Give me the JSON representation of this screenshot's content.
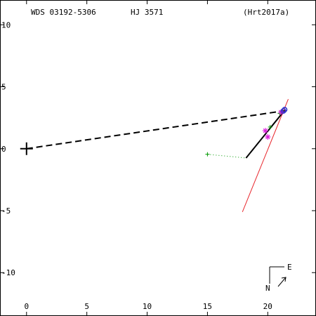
{
  "header": {
    "wds_id": "WDS 03192-5306",
    "discoverer": "HJ 3571",
    "reference": "(Hrt2017a)"
  },
  "compass": {
    "north_label": "N",
    "east_label": "E"
  },
  "colors": {
    "axes": "#000000",
    "orbit": "#000000",
    "line_of_nodes": "#e8262c",
    "measure_link": "#009900",
    "measure_point": "#009900",
    "speckle_point": "#dd22dd",
    "latest_point": "#3333cc"
  },
  "chart_data": {
    "type": "scatter",
    "title": "",
    "xlabel": "",
    "ylabel": "",
    "xlim": [
      -2.2,
      24
    ],
    "ylim": [
      -13.5,
      12
    ],
    "x_ticks": [
      0,
      5,
      10,
      15,
      20
    ],
    "x_tick_labels": [
      "0",
      "5",
      "10",
      "15",
      "20"
    ],
    "y_ticks": [
      10,
      5,
      0,
      -5,
      -10
    ],
    "y_tick_labels": [
      "10",
      "5",
      "0",
      "-5",
      "-10"
    ],
    "primary": {
      "x": 0,
      "y": 0
    },
    "orbit_path": [
      {
        "x": 0,
        "y": 0
      },
      {
        "x": 21.3,
        "y": 3.05
      }
    ],
    "recent_orbit_arc": [
      {
        "x": 18.2,
        "y": -0.75
      },
      {
        "x": 21.4,
        "y": 3.1
      }
    ],
    "line_of_nodes": [
      {
        "x": 17.9,
        "y": -5.1
      },
      {
        "x": 21.7,
        "y": 4.0
      }
    ],
    "early_measure": {
      "x": 15.0,
      "y": -0.45,
      "linked_to": {
        "x": 18.2,
        "y": -0.75
      }
    },
    "measures": [
      {
        "x": 20.2,
        "y": 1.75
      },
      {
        "x": 21.0,
        "y": 2.85
      }
    ],
    "speckle_measures": [
      {
        "x": 19.8,
        "y": 1.45
      },
      {
        "x": 20.0,
        "y": 0.95
      },
      {
        "x": 21.1,
        "y": 2.95
      }
    ],
    "latest_measures": [
      {
        "x": 21.3,
        "y": 3.05
      },
      {
        "x": 21.4,
        "y": 3.15
      }
    ]
  }
}
